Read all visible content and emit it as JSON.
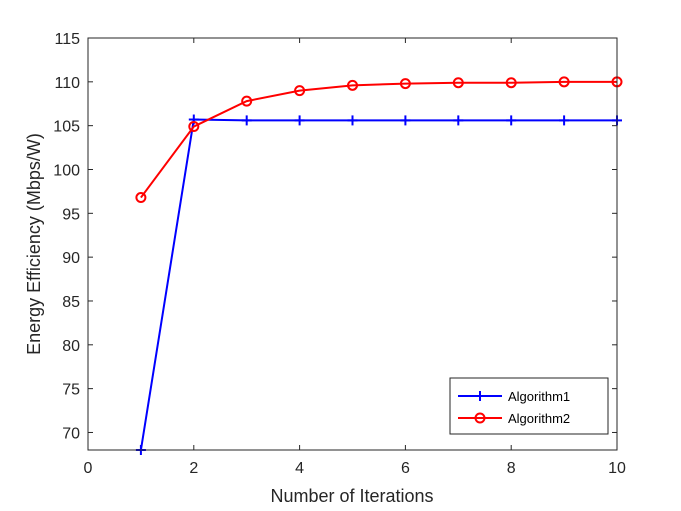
{
  "chart_data": {
    "type": "line",
    "xlabel": "Number of Iterations",
    "ylabel": "Energy Efficiency (Mbps/W)",
    "xlim": [
      0,
      10
    ],
    "ylim": [
      68,
      115
    ],
    "xticks": [
      "0",
      "2",
      "4",
      "6",
      "8",
      "10"
    ],
    "yticks": [
      "70",
      "75",
      "80",
      "85",
      "90",
      "95",
      "100",
      "105",
      "110",
      "115"
    ],
    "grid": false,
    "legend_position": "bottom-right",
    "series": [
      {
        "name": "Algorithm1",
        "color": "#0000ff",
        "marker": "plus",
        "x": [
          1,
          2,
          3,
          4,
          5,
          6,
          7,
          8,
          9,
          10
        ],
        "y": [
          68.0,
          105.7,
          105.6,
          105.6,
          105.6,
          105.6,
          105.6,
          105.6,
          105.6,
          105.6
        ]
      },
      {
        "name": "Algorithm2",
        "color": "#ff0000",
        "marker": "circle",
        "x": [
          1,
          2,
          3,
          4,
          5,
          6,
          7,
          8,
          9,
          10
        ],
        "y": [
          96.8,
          104.9,
          107.8,
          109.0,
          109.6,
          109.8,
          109.9,
          109.9,
          110.0,
          110.0
        ]
      }
    ]
  }
}
